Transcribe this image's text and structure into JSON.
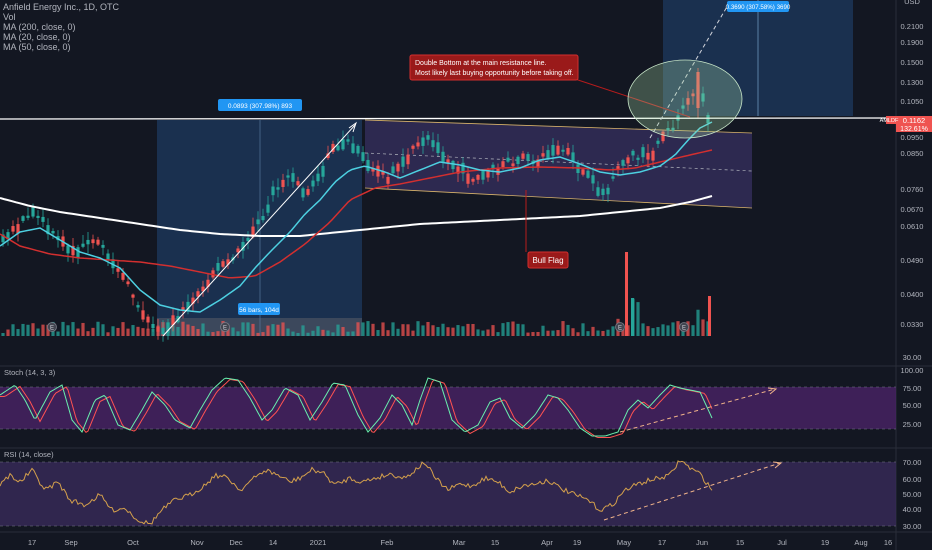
{
  "header": {
    "symbol_line": "Anfield Energy Inc., 1D, OTC",
    "studies": [
      "Vol",
      "MA (200, close, 0)",
      "MA (20, close, 0)",
      "MA (50, close, 0)"
    ],
    "currency": "USD"
  },
  "annotations": {
    "double_bottom_line1": "Double Bottom at the main resistance line.",
    "double_bottom_line2": "Most likely last buying opportunity before  taking off.",
    "bull_flag": "Bull Flag",
    "measure_top": "0.0893 (307.98%) 893",
    "measure_bottom": "56 bars, 104d",
    "target": "0.3690 (307.58%) 3690"
  },
  "price_tag": {
    "symbol": "AMLDF",
    "price": "0.1162",
    "change": "132.61%"
  },
  "colors": {
    "background": "#131722",
    "up": "#26a69a",
    "down": "#ef5350",
    "ma200": "#ffffff",
    "ma20": "#4dd0e1",
    "ma50": "#d32f2f",
    "flag": "#332d58",
    "stoch_band": "#4a2366",
    "rsi_band": "#362956"
  },
  "chart_data": [
    {
      "type": "candlestick",
      "title": "Anfield Energy Inc., 1D, OTC",
      "scale": "log",
      "y_ticks": [
        "0.2100",
        "0.1900",
        "0.1500",
        "0.1300",
        "0.1050",
        "0.0950",
        "0.0850",
        "0.0760",
        "0.0670",
        "0.0610",
        "0.0490",
        "0.0400",
        "0.0330"
      ],
      "x_ticks": [
        "17",
        "Sep",
        "Oct",
        "Nov",
        "Dec",
        "14",
        "2021",
        "Feb",
        "Mar",
        "15",
        "Apr",
        "19",
        "May",
        "17",
        "Jun",
        "15",
        "Jul",
        "19",
        "Aug",
        "16"
      ],
      "last_price": 0.1162,
      "series": [
        {
          "name": "MA (200, close, 0)"
        },
        {
          "name": "MA (20, close, 0)"
        },
        {
          "name": "MA (50, close, 0)"
        }
      ],
      "events": [
        "E",
        "E",
        "E",
        "E"
      ]
    },
    {
      "type": "line",
      "title": "Stoch (14, 3, 3)",
      "y_ticks": [
        "100.00",
        "75.00",
        "50.00",
        "25.00"
      ],
      "upper_band": 80,
      "lower_band": 20
    },
    {
      "type": "line",
      "title": "RSI (14, close)",
      "y_ticks": [
        "70.00",
        "60.00",
        "50.00",
        "40.00",
        "30.00"
      ],
      "upper_band": 70,
      "lower_band": 30
    }
  ]
}
